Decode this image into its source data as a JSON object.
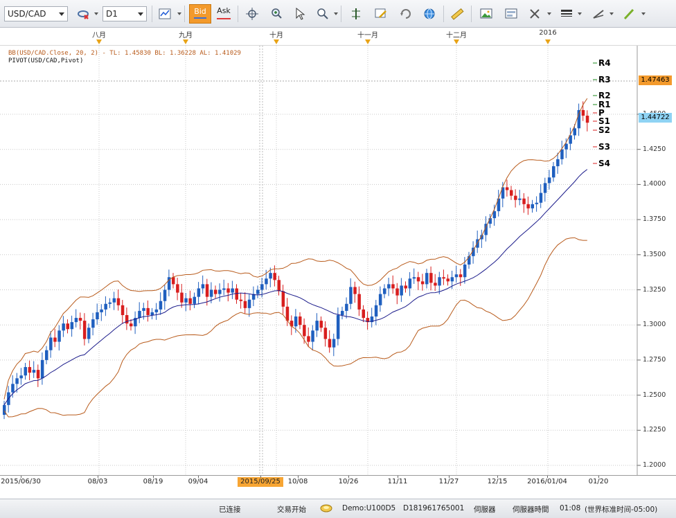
{
  "toolbar": {
    "symbol": "USD/CAD",
    "timeframe": "D1",
    "bid_label": "Bid",
    "ask_label": "Ask"
  },
  "months": [
    {
      "label": "八月",
      "x": 143
    },
    {
      "label": "九月",
      "x": 268
    },
    {
      "label": "十月",
      "x": 399
    },
    {
      "label": "十一月",
      "x": 531
    },
    {
      "label": "十二月",
      "x": 659
    },
    {
      "label": "2016",
      "x": 791
    }
  ],
  "legend": {
    "bb": "BB(USD/CAD.Close, 20, 2) -  TL: 1.45830  BL: 1.36228  AL: 1.41029",
    "pivot": "PIVOT(USD/CAD,Pivot)"
  },
  "price_axis": [
    "1.4500",
    "1.4250",
    "1.4000",
    "1.3750",
    "1.3500",
    "1.3250",
    "1.3000",
    "1.2750",
    "1.2500",
    "1.2250",
    "1.2000"
  ],
  "price_tags": {
    "upper": "1.47463",
    "current": "1.44722"
  },
  "pivots": [
    "R4",
    "R3",
    "R2",
    "R1",
    "P",
    "S1",
    "S2",
    "S3",
    "S4"
  ],
  "dates": [
    "2015/06/30",
    "08/03",
    "08/19",
    "09/04",
    "2015/09/25",
    "10/08",
    "10/26",
    "11/11",
    "11/27",
    "12/15",
    "2016/01/04",
    "01/20"
  ],
  "status": {
    "connection": "已连接",
    "trading": "交易开始",
    "account": "Demo:U100D5",
    "account_id": "D181961765001",
    "server": "伺服器",
    "server_time_label": "伺服器時間",
    "server_time": "01:08",
    "timezone": "(世界标准时间-05:00)"
  },
  "chart_data": {
    "type": "candlestick",
    "title": "USD/CAD D1",
    "ylim": [
      1.2,
      1.49
    ],
    "indicators": [
      "Bollinger Bands (20, 2)",
      "Pivot"
    ],
    "closes": [
      1.243,
      1.252,
      1.258,
      1.262,
      1.264,
      1.27,
      1.266,
      1.268,
      1.262,
      1.275,
      1.282,
      1.291,
      1.288,
      1.296,
      1.301,
      1.297,
      1.302,
      1.305,
      1.303,
      1.29,
      1.298,
      1.304,
      1.309,
      1.311,
      1.315,
      1.316,
      1.319,
      1.314,
      1.307,
      1.301,
      1.299,
      1.305,
      1.31,
      1.312,
      1.307,
      1.309,
      1.311,
      1.317,
      1.325,
      1.334,
      1.329,
      1.323,
      1.316,
      1.319,
      1.315,
      1.32,
      1.326,
      1.329,
      1.32,
      1.325,
      1.322,
      1.325,
      1.326,
      1.323,
      1.326,
      1.318,
      1.317,
      1.312,
      1.318,
      1.322,
      1.325,
      1.329,
      1.333,
      1.337,
      1.332,
      1.324,
      1.313,
      1.303,
      1.299,
      1.306,
      1.3,
      1.292,
      1.288,
      1.296,
      1.303,
      1.298,
      1.29,
      1.284,
      1.29,
      1.307,
      1.31,
      1.315,
      1.327,
      1.322,
      1.311,
      1.305,
      1.302,
      1.306,
      1.314,
      1.322,
      1.326,
      1.329,
      1.326,
      1.321,
      1.328,
      1.326,
      1.333,
      1.334,
      1.331,
      1.329,
      1.337,
      1.33,
      1.328,
      1.334,
      1.333,
      1.331,
      1.334,
      1.336,
      1.334,
      1.343,
      1.349,
      1.355,
      1.361,
      1.364,
      1.372,
      1.376,
      1.381,
      1.39,
      1.398,
      1.396,
      1.392,
      1.389,
      1.39,
      1.386,
      1.383,
      1.386,
      1.387,
      1.394,
      1.401,
      1.405,
      1.413,
      1.418,
      1.425,
      1.429,
      1.435,
      1.44,
      1.453,
      1.449,
      1.444
    ]
  }
}
